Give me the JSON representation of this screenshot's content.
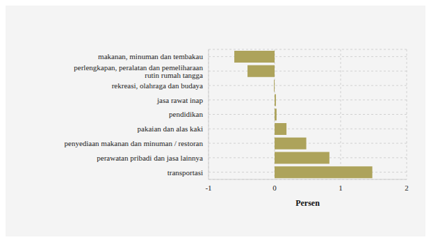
{
  "chart_data": {
    "type": "bar",
    "orientation": "horizontal",
    "x_label": "Persen",
    "categories": [
      "makanan, minuman dan tembakau",
      "perlengkapan, peralatan dan pemeliharaan rutin rumah tangga",
      "rekreasi, olahraga dan budaya",
      "jasa rawat inap",
      "pendidikan",
      "pakaian dan alas kaki",
      "penyediaan makanan dan minuman / restoran",
      "perawatan pribadi dan jasa lainnya",
      "transportasi"
    ],
    "values": [
      -0.61,
      -0.41,
      -0.01,
      0.02,
      0.03,
      0.18,
      0.48,
      0.83,
      1.48
    ],
    "color": "#ada35b",
    "xlim": [
      -1,
      2
    ],
    "xticks": [
      -1,
      0,
      1,
      2
    ],
    "grid": true
  }
}
